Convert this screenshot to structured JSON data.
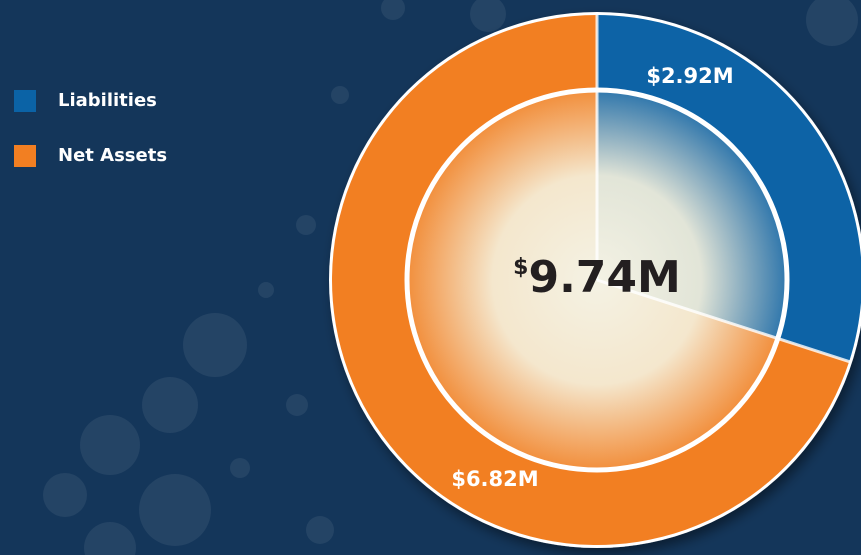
{
  "chart_data": {
    "type": "donut",
    "categories": [
      "Liabilities",
      "Net Assets"
    ],
    "values": [
      2.92,
      6.82
    ],
    "value_labels": [
      "$2.92M",
      "$6.82M"
    ],
    "colors": [
      "#0b63a6",
      "#f27f22"
    ],
    "center_label": "$9.74M",
    "legend": "top-left"
  }
}
